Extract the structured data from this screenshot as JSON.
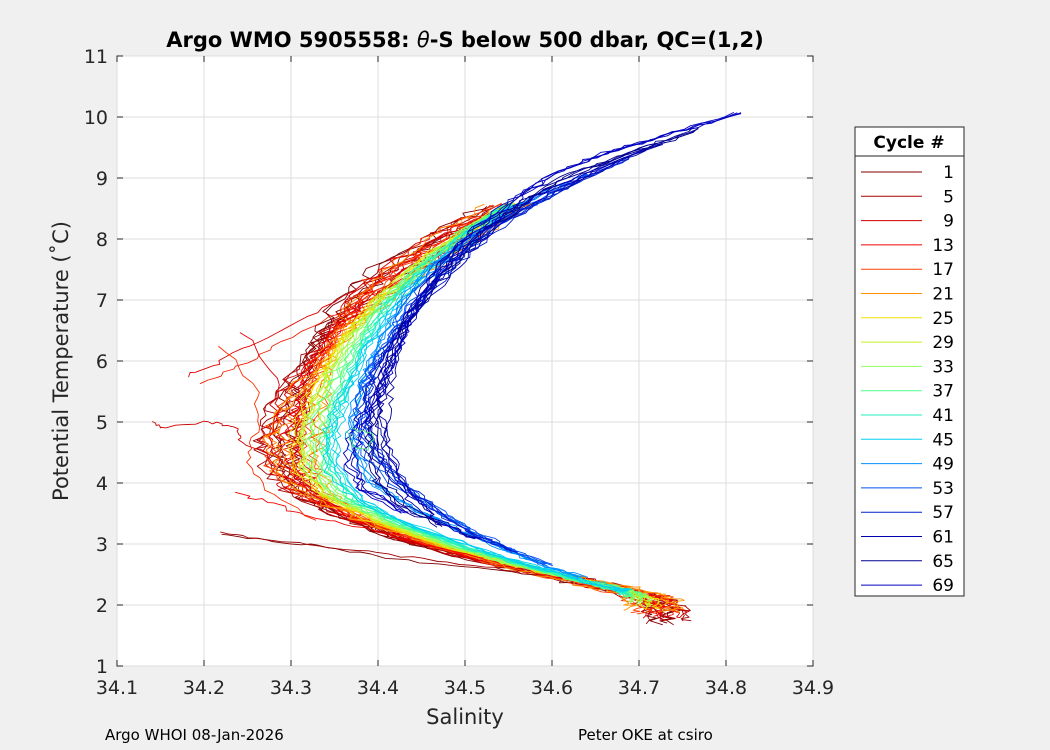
{
  "chart_data": {
    "type": "line",
    "title_prefix": "Argo WMO 5905558: ",
    "title_theta": "θ",
    "title_suffix": "-S below 500 dbar,  QC=(1,2)",
    "xlabel": "Salinity",
    "ylabel": "Potential Temperature (˚C)",
    "xlim": [
      34.1,
      34.9
    ],
    "ylim": [
      1,
      11
    ],
    "xticks": [
      "34.1",
      "34.2",
      "34.3",
      "34.4",
      "34.5",
      "34.6",
      "34.7",
      "34.8",
      "34.9"
    ],
    "yticks": [
      "1",
      "2",
      "3",
      "4",
      "5",
      "6",
      "7",
      "8",
      "9",
      "10",
      "11"
    ],
    "grid": true,
    "legend_title": "Cycle #",
    "legend_position": "right",
    "series": [
      {
        "name": "1",
        "color": "#800000"
      },
      {
        "name": "5",
        "color": "#a80000"
      },
      {
        "name": "9",
        "color": "#d00000"
      },
      {
        "name": "13",
        "color": "#f00000"
      },
      {
        "name": "17",
        "color": "#ff4000"
      },
      {
        "name": "21",
        "color": "#ff9000"
      },
      {
        "name": "25",
        "color": "#f0e000"
      },
      {
        "name": "29",
        "color": "#c8f020"
      },
      {
        "name": "33",
        "color": "#90ff60"
      },
      {
        "name": "37",
        "color": "#50ff90"
      },
      {
        "name": "41",
        "color": "#20f0c0"
      },
      {
        "name": "45",
        "color": "#00d0f0"
      },
      {
        "name": "49",
        "color": "#0090ff"
      },
      {
        "name": "53",
        "color": "#0050f0"
      },
      {
        "name": "57",
        "color": "#0020d0"
      },
      {
        "name": "61",
        "color": "#0000b0"
      },
      {
        "name": "65",
        "color": "#000090"
      },
      {
        "name": "69",
        "color": "#0000c0"
      }
    ],
    "profiles": {
      "main_blue": [
        [
          34.81,
          10.05
        ],
        [
          34.74,
          9.75
        ],
        [
          34.66,
          9.4
        ],
        [
          34.6,
          9.05
        ],
        [
          34.56,
          8.65
        ],
        [
          34.52,
          8.2
        ],
        [
          34.48,
          7.6
        ],
        [
          34.45,
          7.0
        ],
        [
          34.43,
          6.4
        ],
        [
          34.41,
          5.8
        ],
        [
          34.39,
          5.3
        ],
        [
          34.37,
          4.8
        ],
        [
          34.365,
          4.3
        ],
        [
          34.38,
          3.9
        ],
        [
          34.43,
          3.5
        ],
        [
          34.5,
          3.1
        ],
        [
          34.57,
          2.75
        ],
        [
          34.63,
          2.45
        ],
        [
          34.67,
          2.3
        ]
      ],
      "main_green": [
        [
          34.56,
          8.6
        ],
        [
          34.51,
          8.1
        ],
        [
          34.46,
          7.5
        ],
        [
          34.42,
          6.9
        ],
        [
          34.39,
          6.3
        ],
        [
          34.37,
          5.7
        ],
        [
          34.355,
          5.2
        ],
        [
          34.345,
          4.7
        ],
        [
          34.35,
          4.2
        ],
        [
          34.38,
          3.7
        ],
        [
          34.44,
          3.3
        ],
        [
          34.52,
          2.9
        ],
        [
          34.59,
          2.6
        ],
        [
          34.64,
          2.4
        ],
        [
          34.68,
          2.25
        ]
      ],
      "main_red": [
        [
          34.55,
          8.55
        ],
        [
          34.49,
          8.1
        ],
        [
          34.43,
          7.6
        ],
        [
          34.38,
          7.1
        ],
        [
          34.34,
          6.5
        ],
        [
          34.31,
          5.9
        ],
        [
          34.29,
          5.3
        ],
        [
          34.28,
          4.8
        ],
        [
          34.28,
          4.3
        ],
        [
          34.3,
          3.9
        ],
        [
          34.35,
          3.5
        ],
        [
          34.42,
          3.1
        ],
        [
          34.5,
          2.8
        ],
        [
          34.58,
          2.55
        ],
        [
          34.65,
          2.35
        ],
        [
          34.71,
          2.15
        ],
        [
          34.74,
          1.95
        ],
        [
          34.74,
          1.7
        ]
      ],
      "red_hook": [
        [
          34.14,
          5.0
        ],
        [
          34.15,
          4.9
        ],
        [
          34.2,
          5.0
        ],
        [
          34.22,
          4.97
        ],
        [
          34.24,
          4.9
        ],
        [
          34.24,
          4.7
        ],
        [
          34.27,
          4.5
        ]
      ],
      "red_spur": [
        [
          34.18,
          5.75
        ],
        [
          34.22,
          6.0
        ],
        [
          34.27,
          6.4
        ],
        [
          34.34,
          6.9
        ],
        [
          34.4,
          7.4
        ]
      ],
      "red_low": [
        [
          34.22,
          3.15
        ],
        [
          34.28,
          3.05
        ],
        [
          34.34,
          2.95
        ],
        [
          34.42,
          2.75
        ],
        [
          34.5,
          2.62
        ],
        [
          34.58,
          2.5
        ]
      ],
      "red_low2": [
        [
          34.22,
          3.2
        ],
        [
          34.26,
          3.1
        ],
        [
          34.32,
          3.0
        ],
        [
          34.4,
          2.85
        ],
        [
          34.48,
          2.7
        ],
        [
          34.56,
          2.55
        ]
      ],
      "red_mid": [
        [
          34.24,
          3.85
        ],
        [
          34.27,
          3.7
        ],
        [
          34.31,
          3.5
        ],
        [
          34.37,
          3.3
        ],
        [
          34.45,
          3.0
        ],
        [
          34.53,
          2.75
        ]
      ],
      "red_mid2": [
        [
          34.22,
          6.25
        ],
        [
          34.26,
          5.5
        ],
        [
          34.26,
          4.9
        ],
        [
          34.25,
          4.4
        ],
        [
          34.27,
          3.9
        ],
        [
          34.33,
          3.4
        ]
      ],
      "green_loop": [
        [
          34.37,
          4.9
        ],
        [
          34.395,
          4.8
        ],
        [
          34.39,
          4.55
        ],
        [
          34.37,
          4.6
        ],
        [
          34.365,
          4.85
        ]
      ]
    }
  },
  "footer": {
    "left": "Argo WHOI 08-Jan-2026",
    "right": "Peter OKE at csiro"
  }
}
